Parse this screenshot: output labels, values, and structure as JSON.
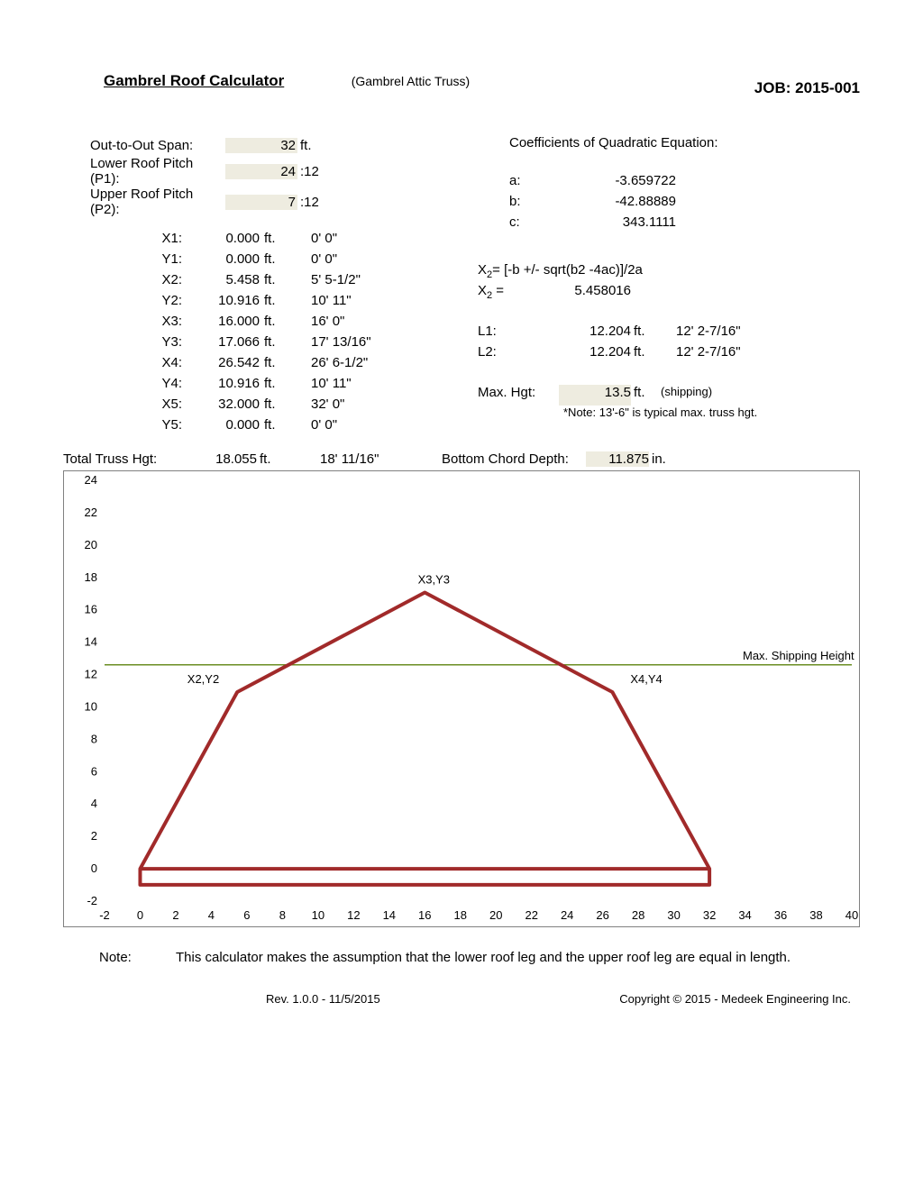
{
  "job": {
    "label": "JOB:",
    "value": "2015-001"
  },
  "header": {
    "title": "Gambrel Roof Calculator",
    "subtitle": "(Gambrel Attic Truss)"
  },
  "inputs": {
    "span_label": "Out-to-Out Span:",
    "span_value": "32",
    "span_unit": "ft.",
    "p1_label": "Lower Roof Pitch (P1):",
    "p1_value": "24",
    "p1_unit": ":12",
    "p2_label": "Upper Roof Pitch (P2):",
    "p2_value": "7",
    "p2_unit": ":12"
  },
  "coords": [
    {
      "name": "X1:",
      "val": "0.000",
      "unit": "ft.",
      "imp": "0' 0\""
    },
    {
      "name": "Y1:",
      "val": "0.000",
      "unit": "ft.",
      "imp": "0' 0\""
    },
    {
      "name": "X2:",
      "val": "5.458",
      "unit": "ft.",
      "imp": "5' 5-1/2\""
    },
    {
      "name": "Y2:",
      "val": "10.916",
      "unit": "ft.",
      "imp": "10' 11\""
    },
    {
      "name": "X3:",
      "val": "16.000",
      "unit": "ft.",
      "imp": "16' 0\""
    },
    {
      "name": "Y3:",
      "val": "17.066",
      "unit": "ft.",
      "imp": "17' 13/16\""
    },
    {
      "name": "X4:",
      "val": "26.542",
      "unit": "ft.",
      "imp": "26' 6-1/2\""
    },
    {
      "name": "Y4:",
      "val": "10.916",
      "unit": "ft.",
      "imp": "10' 11\""
    },
    {
      "name": "X5:",
      "val": "32.000",
      "unit": "ft.",
      "imp": "32' 0\""
    },
    {
      "name": "Y5:",
      "val": "0.000",
      "unit": "ft.",
      "imp": "0' 0\""
    }
  ],
  "coef": {
    "title": "Coefficients of Quadratic Equation:",
    "a_lab": "a:",
    "a_val": "-3.659722",
    "b_lab": "b:",
    "b_val": "-42.88889",
    "c_lab": "c:",
    "c_val": "343.1111"
  },
  "equation": {
    "formula_lhs": "X",
    "formula_sub": "2",
    "formula_rhs": "= [-b +/- sqrt(b2 -4ac)]/2a",
    "res_lhs": "X",
    "res_sub": "2",
    "res_eq": " =",
    "res_val": "5.458016"
  },
  "lengths": {
    "l1_lab": "L1:",
    "l1_val": "12.204",
    "l1_unit": "ft.",
    "l1_imp": "12' 2-7/16\"",
    "l2_lab": "L2:",
    "l2_val": "12.204",
    "l2_unit": "ft.",
    "l2_imp": "12' 2-7/16\""
  },
  "maxhgt": {
    "label": "Max. Hgt:",
    "value": "13.5",
    "unit": "ft.",
    "suffix": "(shipping)",
    "note": "*Note: 13'-6\" is typical max. truss hgt."
  },
  "totals": {
    "tth_lab": "Total Truss Hgt:",
    "tth_val": "18.055",
    "tth_unit": "ft.",
    "tth_imp": "18' 11/16\"",
    "bcd_lab": "Bottom Chord Depth:",
    "bcd_val": "11.875",
    "bcd_unit": "in."
  },
  "chart": {
    "x_ticks": [
      -2,
      0,
      2,
      4,
      6,
      8,
      10,
      12,
      14,
      16,
      18,
      20,
      22,
      24,
      26,
      28,
      30,
      32,
      34,
      36,
      38,
      40
    ],
    "y_ticks": [
      -2,
      0,
      2,
      4,
      6,
      8,
      10,
      12,
      14,
      16,
      18,
      20,
      22,
      24
    ],
    "xmin": -2,
    "xmax": 40,
    "ymin": -2,
    "ymax": 24,
    "points": [
      {
        "x": 0,
        "y": 0
      },
      {
        "x": 5.458,
        "y": 10.916
      },
      {
        "x": 16.0,
        "y": 17.066
      },
      {
        "x": 26.542,
        "y": 10.916
      },
      {
        "x": 32.0,
        "y": 0
      }
    ],
    "bottom_chord_y": -0.99,
    "ship_line_y": 12.6,
    "annotations": {
      "p2": "X2,Y2",
      "p3": "X3,Y3",
      "p4": "X4,Y4",
      "ship": "Max. Shipping Height"
    },
    "colors": {
      "truss_stroke": "#a12a2a",
      "ship_stroke": "#6b8e23",
      "grid": "#bfbfbf",
      "tick_text": "#000000"
    },
    "line_width": 4,
    "tick_fontsize": 13,
    "anno_fontsize": 13
  },
  "footer": {
    "note_lab": "Note:",
    "note_text": "This calculator makes the assumption that the lower roof leg and the upper roof leg are equal in length.",
    "rev": "Rev. 1.0.0 - 11/5/2015",
    "copyright": "Copyright © 2015 - Medeek Engineering Inc."
  }
}
